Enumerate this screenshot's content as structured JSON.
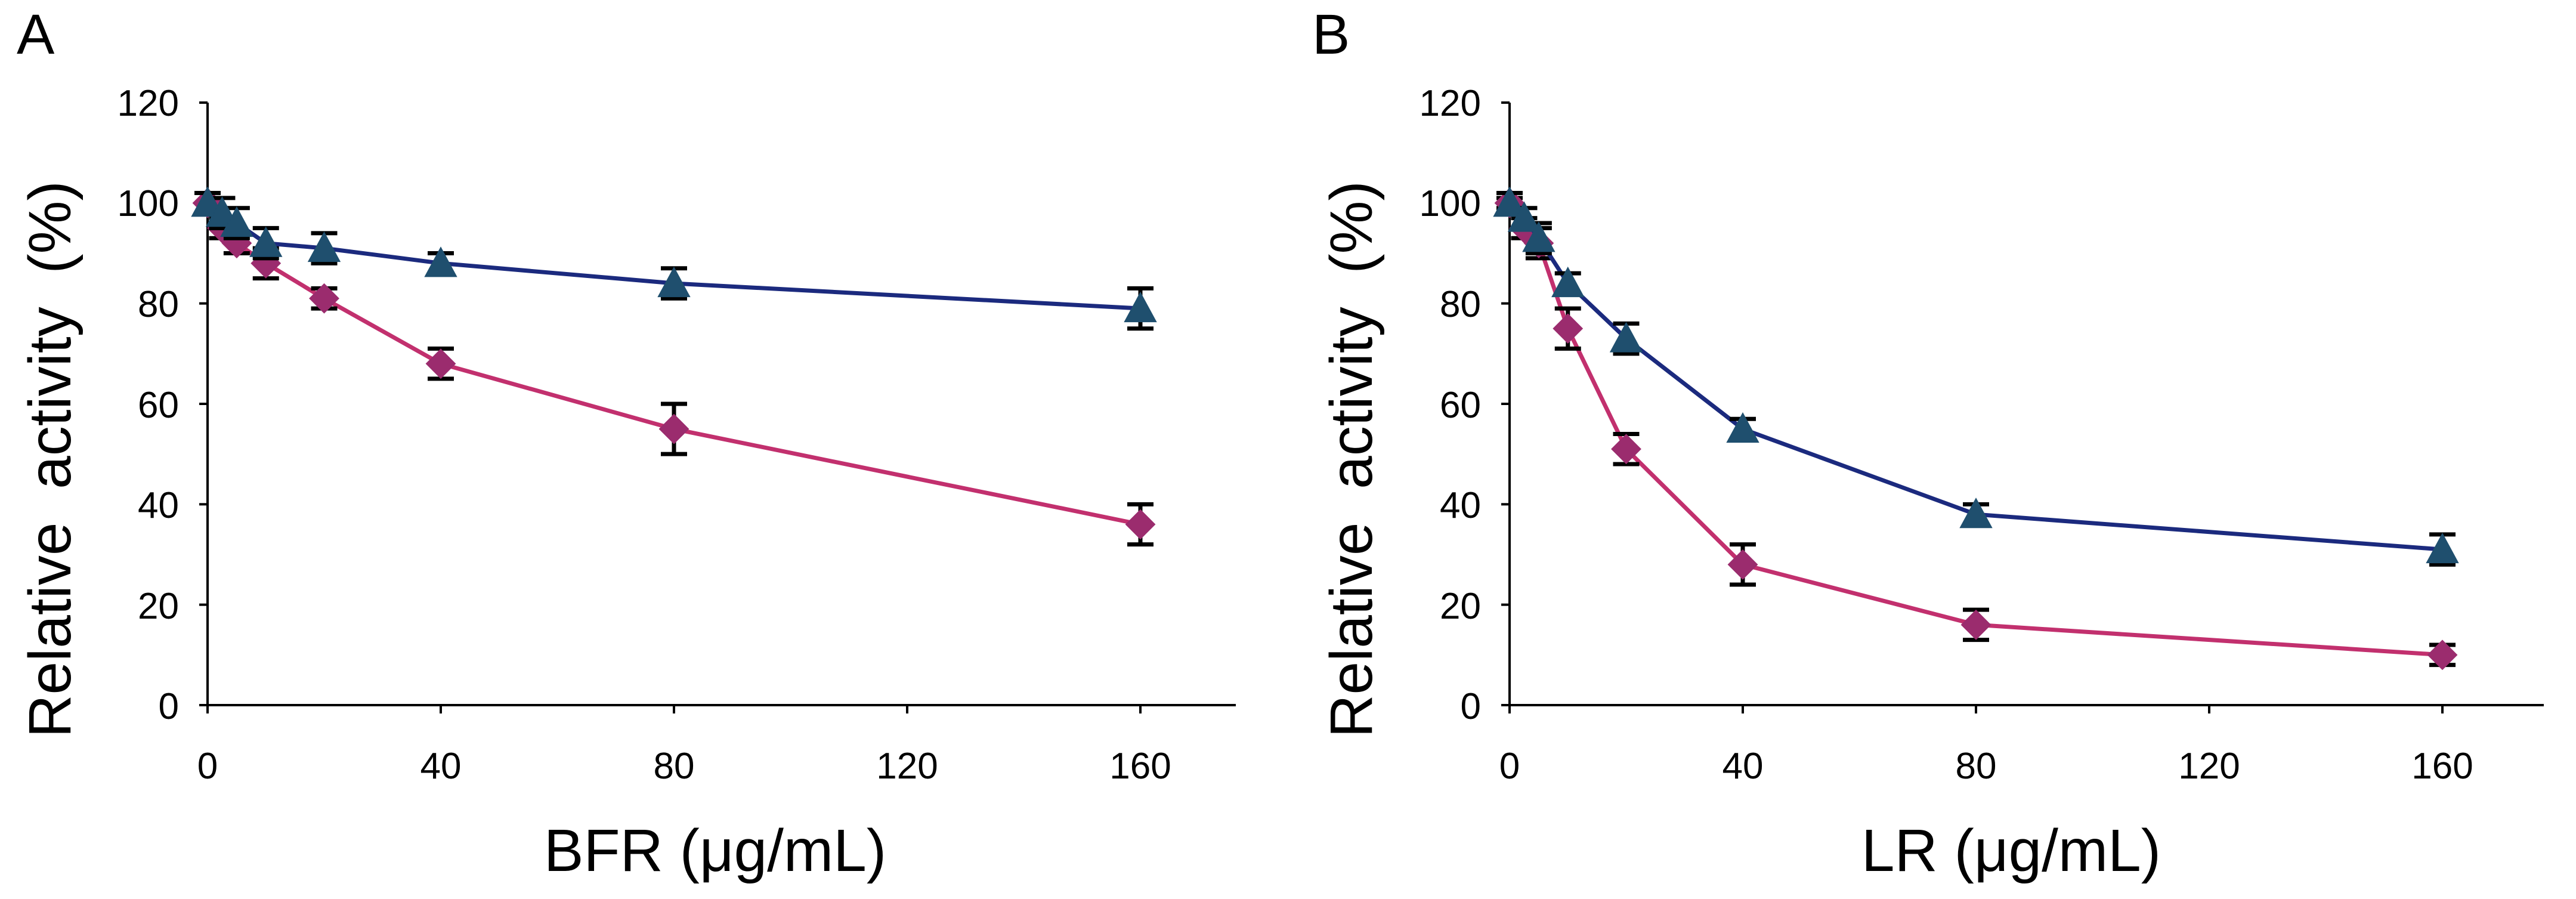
{
  "chart_data": [
    {
      "panel_label": "A",
      "type": "line",
      "xlabel": "BFR (μg/mL)",
      "ylabel": "Relative  activity  (%)",
      "xlim": [
        0,
        180
      ],
      "ylim": [
        0,
        120
      ],
      "xticks": [
        "0",
        "40",
        "80",
        "120",
        "160"
      ],
      "xtick_values": [
        0,
        40,
        80,
        120,
        160
      ],
      "yticks": [
        "0",
        "20",
        "40",
        "60",
        "80",
        "100",
        "120"
      ],
      "ytick_values": [
        0,
        20,
        40,
        60,
        80,
        100,
        120
      ],
      "series": [
        {
          "name": "triangle",
          "marker": "triangle",
          "color": "#1b2a7e",
          "marker_color": "#1f4f6e",
          "x": [
            0,
            2.5,
            5,
            10,
            20,
            40,
            80,
            160
          ],
          "y": [
            100,
            98,
            96,
            92,
            91,
            88,
            84,
            79
          ],
          "err": [
            2,
            3,
            3,
            3,
            3,
            2,
            3,
            4
          ]
        },
        {
          "name": "diamond",
          "marker": "diamond",
          "color": "#c2306e",
          "marker_color": "#9b2c6e",
          "x": [
            0,
            2.5,
            5,
            10,
            20,
            40,
            80,
            160
          ],
          "y": [
            100,
            95,
            92,
            88,
            81,
            68,
            55,
            36
          ],
          "err": [
            2,
            2,
            2,
            3,
            2,
            3,
            5,
            4
          ]
        }
      ]
    },
    {
      "panel_label": "B",
      "type": "line",
      "xlabel": "LR (μg/mL)",
      "ylabel": "Relative  activity  (%)",
      "xlim": [
        0,
        180
      ],
      "ylim": [
        0,
        120
      ],
      "xticks": [
        "0",
        "40",
        "80",
        "120",
        "160"
      ],
      "xtick_values": [
        0,
        40,
        80,
        120,
        160
      ],
      "yticks": [
        "0",
        "20",
        "40",
        "60",
        "80",
        "100",
        "120"
      ],
      "ytick_values": [
        0,
        20,
        40,
        60,
        80,
        100,
        120
      ],
      "series": [
        {
          "name": "triangle",
          "marker": "triangle",
          "color": "#1b2a7e",
          "marker_color": "#1f4f6e",
          "x": [
            0,
            2.5,
            5,
            10,
            20,
            40,
            80,
            160
          ],
          "y": [
            100,
            97,
            93,
            84,
            73,
            55,
            38,
            31
          ],
          "err": [
            2,
            2,
            3,
            2,
            3,
            2,
            2,
            3
          ]
        },
        {
          "name": "diamond",
          "marker": "diamond",
          "color": "#c2306e",
          "marker_color": "#9b2c6e",
          "x": [
            0,
            2.5,
            5,
            10,
            20,
            40,
            80,
            160
          ],
          "y": [
            100,
            95,
            92,
            75,
            51,
            28,
            16,
            10
          ],
          "err": [
            1,
            2,
            3,
            4,
            3,
            4,
            3,
            2
          ]
        }
      ]
    }
  ]
}
